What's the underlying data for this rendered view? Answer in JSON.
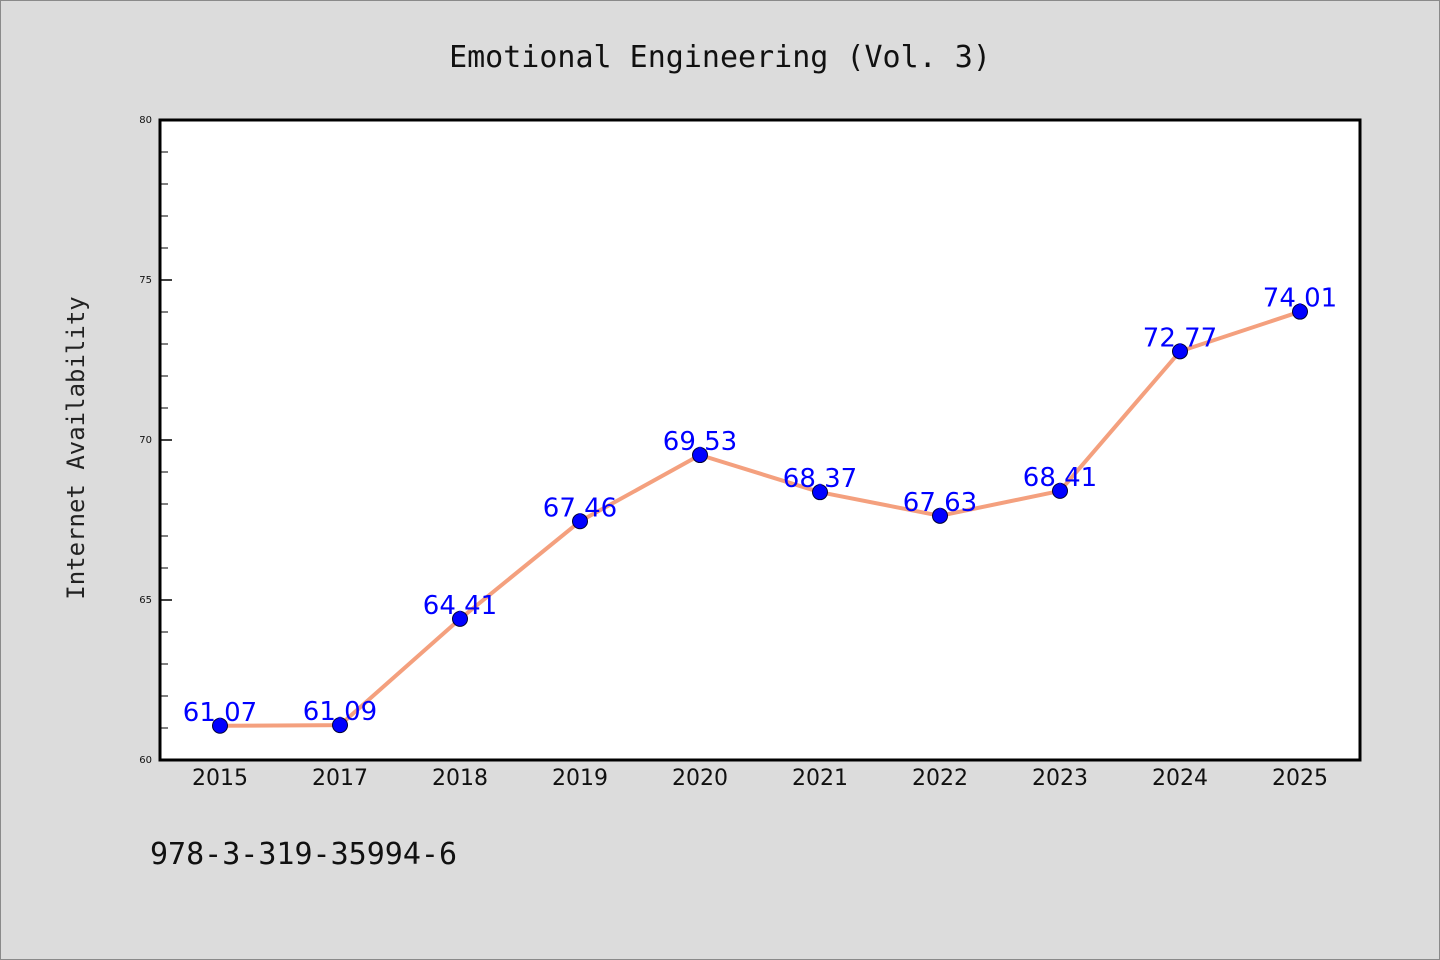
{
  "chart_data": {
    "type": "line",
    "title": "Emotional Engineering (Vol. 3)",
    "ylabel": "Internet Availability",
    "xlabel": "",
    "categories": [
      "2015",
      "2017",
      "2018",
      "2019",
      "2020",
      "2021",
      "2022",
      "2023",
      "2024",
      "2025"
    ],
    "series": [
      {
        "values": [
          61.07,
          61.09,
          64.41,
          67.46,
          69.53,
          68.37,
          67.63,
          68.41,
          72.77,
          74.01
        ],
        "data_labels": [
          "61.07",
          "61.09",
          "64.41",
          "67.46",
          "69.53",
          "68.37",
          "67.63",
          "68.41",
          "72.77",
          "74.01"
        ]
      }
    ],
    "ylim": [
      60,
      80
    ],
    "yticks": [
      "60",
      "65",
      "70",
      "75",
      "80"
    ],
    "grid": false,
    "colors": {
      "line": "#f4a07e",
      "marker": "#0000ff",
      "label": "#0000ff"
    }
  },
  "footer": {
    "isbn": "978-3-319-35994-6"
  }
}
